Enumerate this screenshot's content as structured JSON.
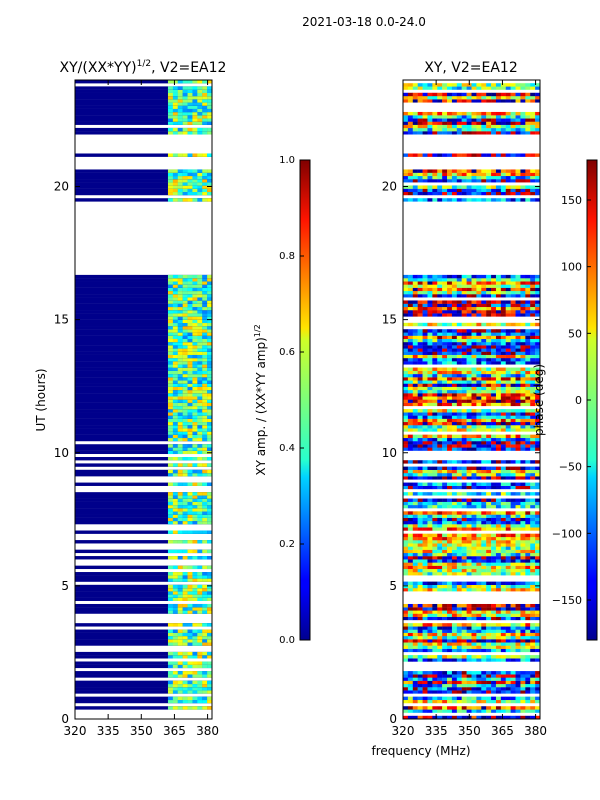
{
  "figure_title": "2021-03-18 0.0-24.0",
  "xlabel": "frequency (MHz)",
  "colors": {
    "fill_blue": "#00008b",
    "gap_white": "#ffffff"
  },
  "chart_data": [
    {
      "type": "heatmap",
      "title_main": "XY/(XX*YY)",
      "title_sup": "1/2",
      "title_tail": ", V2=EA12",
      "xlabel": "frequency (MHz)",
      "ylabel": "UT (hours)",
      "xlim": [
        320,
        382
      ],
      "ylim": [
        0,
        24
      ],
      "x_ticks": [
        320,
        335,
        350,
        365,
        380
      ],
      "y_ticks": [
        0,
        5,
        10,
        15,
        20
      ],
      "no_data_ut_ranges": [
        [
          18.75,
          19.35
        ],
        [
          16.6,
          18.75
        ],
        [
          20.6,
          21.1
        ],
        [
          21.2,
          21.9
        ]
      ],
      "colorbar": {
        "label_main": "XY amp. / (XX*YY amp)",
        "label_sup": "1/2",
        "range": [
          0.0,
          1.0
        ],
        "ticks": [
          "0.0",
          "0.2",
          "0.4",
          "0.6",
          "0.8",
          "1.0"
        ],
        "colormap": "jet"
      }
    },
    {
      "type": "heatmap",
      "title": "XY, V2=EA12",
      "xlabel": "frequency (MHz)",
      "xlim": [
        320,
        382
      ],
      "ylim": [
        0,
        24
      ],
      "x_ticks": [
        320,
        335,
        350,
        365,
        380
      ],
      "y_ticks": [
        0,
        5,
        10,
        15,
        20
      ],
      "no_data_ut_ranges": [
        [
          18.75,
          19.35
        ],
        [
          16.6,
          18.75
        ],
        [
          20.6,
          21.1
        ],
        [
          21.2,
          21.9
        ]
      ],
      "colorbar": {
        "label": "phase (deg)",
        "range": [
          -180,
          180
        ],
        "ticks": [
          "−150",
          "−100",
          "−50",
          "0",
          "50",
          "100",
          "150"
        ],
        "tick_values": [
          -150,
          -100,
          -50,
          0,
          50,
          100,
          150
        ],
        "colormap": "jet"
      }
    }
  ]
}
